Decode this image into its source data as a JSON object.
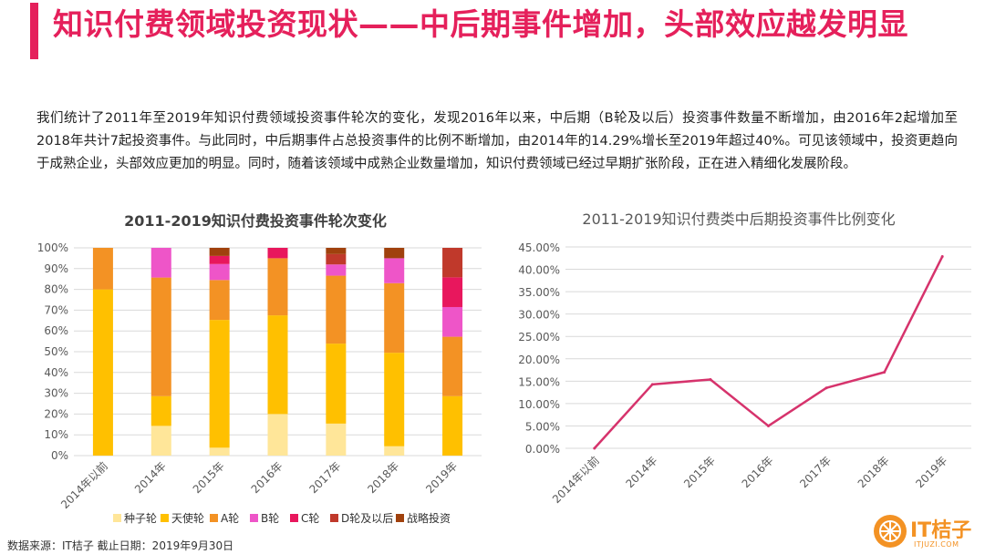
{
  "header": {
    "title": "知识付费领域投资现状——中后期事件增加，头部效应越发明显"
  },
  "intro": {
    "text": "我们统计了2011年至2019年知识付费领域投资事件轮次的变化，发现2016年以来，中后期（B轮及以后）投资事件数量不断增加，由2016年2起增加至2018年共计7起投资事件。与此同时，中后期事件占总投资事件的比例不断增加，由2014年的14.29%增长至2019年超过40%。可见该领域中，投资更趋向于成熟企业，头部效应更加的明显。同时，随着该领域中成熟企业数量增加，知识付费领域已经过早期扩张阶段，正在进入精细化发展阶段。"
  },
  "colors": {
    "accent": "#e5205b",
    "logo": "#f39224",
    "line": "#d6336c"
  },
  "chart_data": [
    {
      "type": "bar",
      "stacked": true,
      "title": "2011-2019知识付费投资事件轮次变化",
      "categories": [
        "2014年以前",
        "2014年",
        "2015年",
        "2016年",
        "2017年",
        "2018年",
        "2019年"
      ],
      "y_ticks": [
        "0%",
        "10%",
        "20%",
        "30%",
        "40%",
        "50%",
        "60%",
        "70%",
        "80%",
        "90%",
        "100%"
      ],
      "ylim": [
        0,
        100
      ],
      "legend_position": "bottom",
      "series": [
        {
          "name": "种子轮",
          "color": "#ffe699",
          "values": [
            0,
            14.3,
            3.8,
            20.0,
            15.4,
            4.5,
            0
          ]
        },
        {
          "name": "天使轮",
          "color": "#ffc000",
          "values": [
            80.0,
            14.3,
            61.5,
            47.5,
            38.5,
            45.0,
            28.6
          ]
        },
        {
          "name": "A轮",
          "color": "#f39224",
          "values": [
            20.0,
            57.1,
            19.2,
            27.5,
            32.7,
            33.5,
            28.6
          ]
        },
        {
          "name": "B轮",
          "color": "#ee55c8",
          "values": [
            0,
            14.3,
            7.7,
            0,
            5.4,
            12.0,
            14.3
          ]
        },
        {
          "name": "C轮",
          "color": "#e8175d",
          "values": [
            0,
            0,
            3.9,
            5.0,
            0,
            0,
            14.3
          ]
        },
        {
          "name": "D轮及以后",
          "color": "#c0392b",
          "values": [
            0,
            0,
            0,
            0,
            5.0,
            0,
            14.2
          ]
        },
        {
          "name": "战略投资",
          "color": "#a0410d",
          "values": [
            0,
            0,
            3.9,
            0,
            3.0,
            5.0,
            0
          ]
        }
      ]
    },
    {
      "type": "line",
      "title": "2011-2019知识付费类中后期投资事件比例变化",
      "categories": [
        "2014年以前",
        "2014年",
        "2015年",
        "2016年",
        "2017年",
        "2018年",
        "2019年"
      ],
      "values": [
        0.0,
        14.29,
        15.38,
        5.0,
        13.5,
        17.0,
        42.86
      ],
      "y_ticks": [
        "0.00%",
        "5.00%",
        "10.00%",
        "15.00%",
        "20.00%",
        "25.00%",
        "30.00%",
        "35.00%",
        "40.00%",
        "45.00%"
      ],
      "ylim": [
        0,
        45
      ],
      "color": "#d6336c"
    }
  ],
  "footer": {
    "source": "数据来源：IT桔子 截止日期：2019年9月30日",
    "logo_text": "IT桔子",
    "logo_sub": "ITJUZI.COM"
  }
}
